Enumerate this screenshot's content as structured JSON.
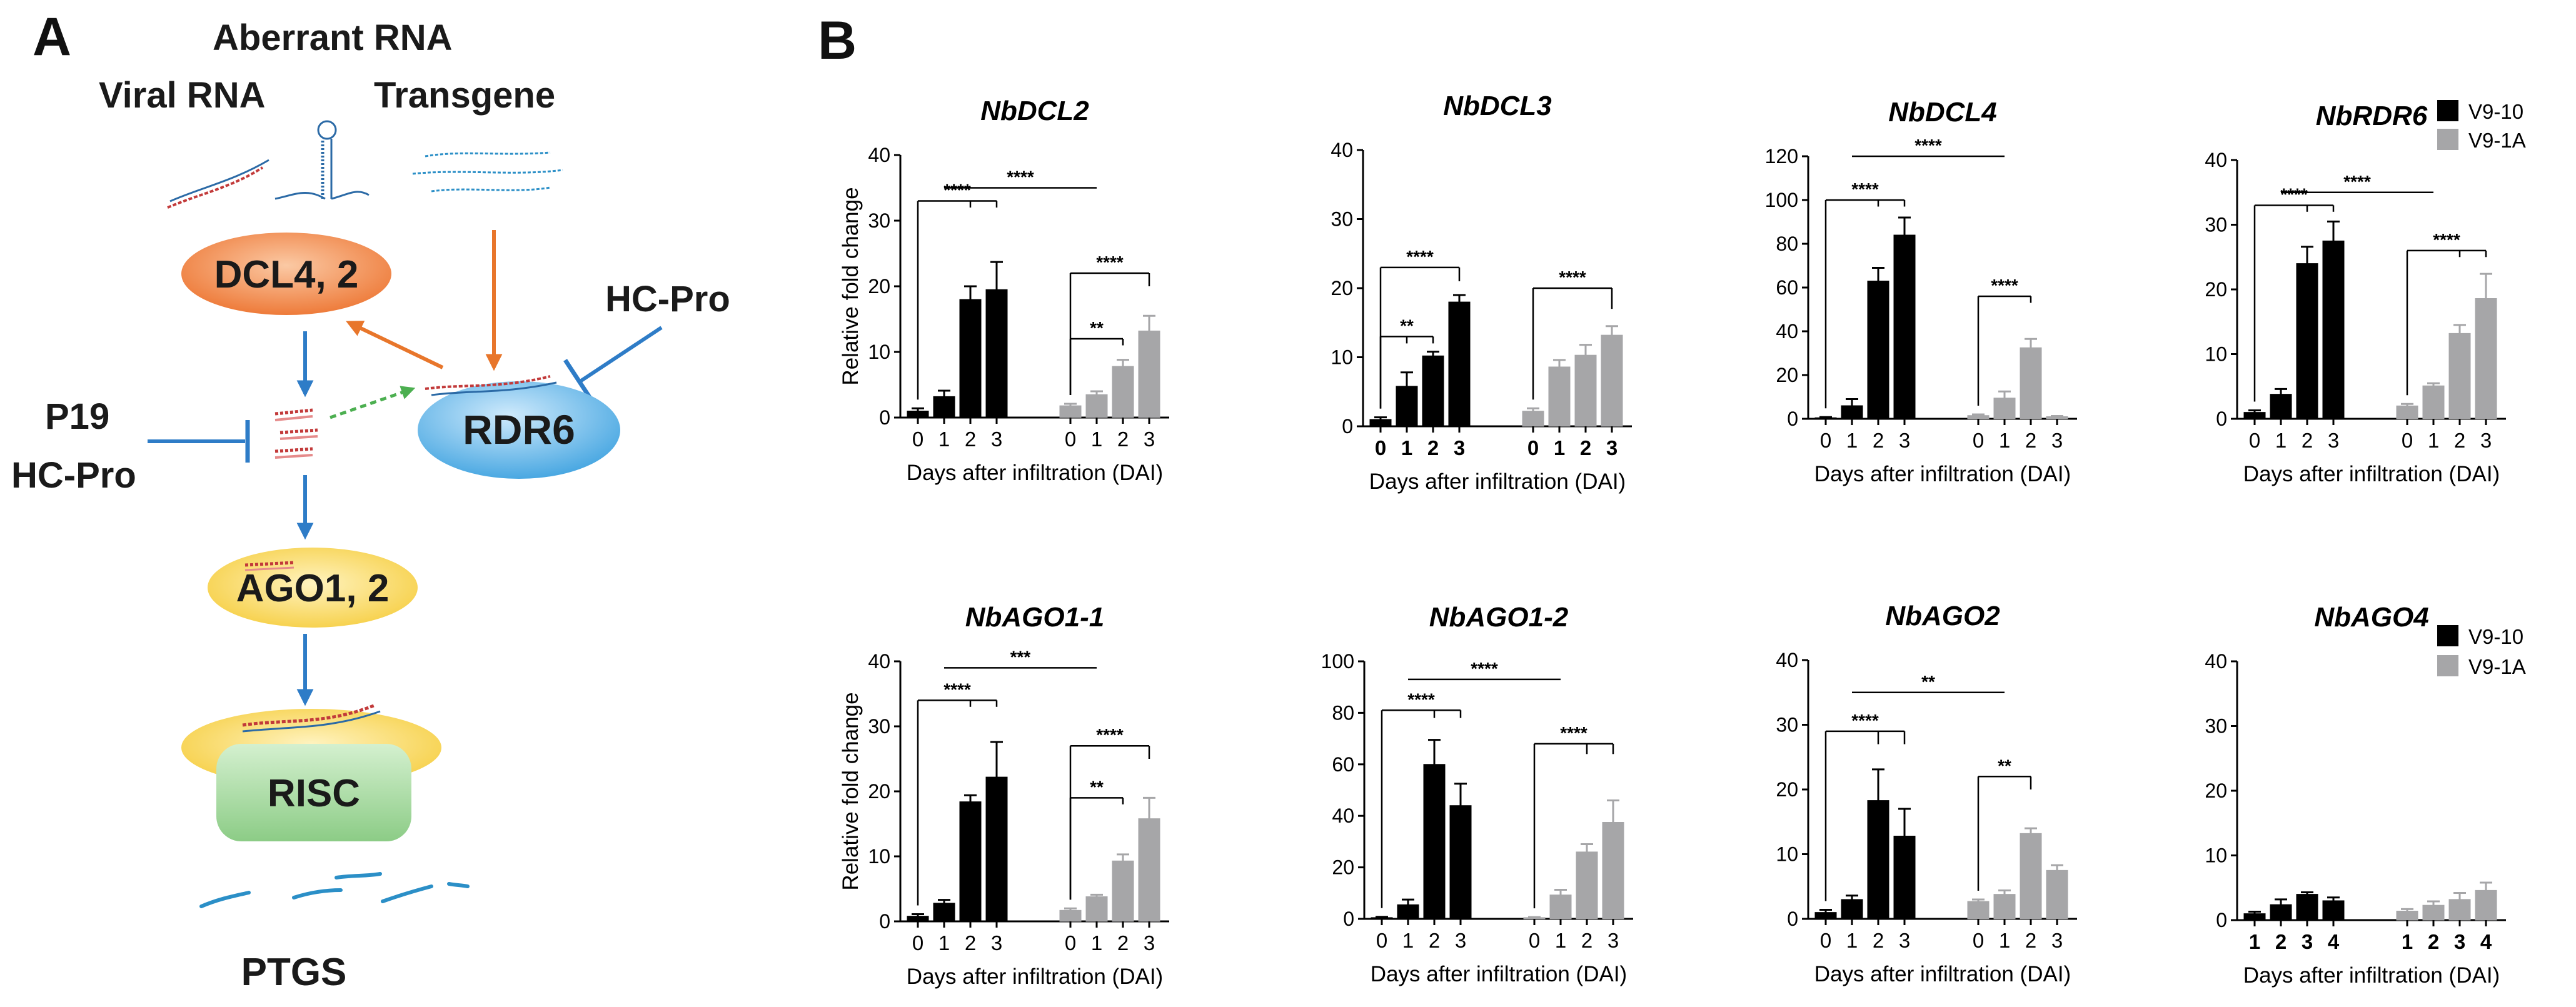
{
  "panels": {
    "a": "A",
    "b": "B"
  },
  "diagram": {
    "sources": {
      "aberrant": "Aberrant RNA",
      "viral": "Viral RNA",
      "transgene": "Transgene"
    },
    "nodes": {
      "dcl": "DCL4, 2",
      "rdr6": "RDR6",
      "ago": "AGO1, 2",
      "risc": "RISC",
      "ptgs": "PTGS"
    },
    "suppressors": {
      "hcpro_right": "HC-Pro",
      "p19": "P19",
      "hcpro_left": "HC-Pro"
    },
    "colors": {
      "dcl_fill": "#f08a4b",
      "rdr6_fill": "#5fb3e6",
      "ago_fill": "#f7d55a",
      "risc_fill": "#9ed59a",
      "arrow_blue": "#2e7cc7",
      "arrow_orange": "#e8762b",
      "arrow_green": "#4caf50"
    }
  },
  "legend": {
    "series1": "V9-10",
    "series2": "V9-1A",
    "color1": "#000000",
    "color2": "#a6a6a8"
  },
  "chart_data": [
    {
      "type": "bar",
      "title": "NbDCL2",
      "ylabel": "Relative fold change",
      "xlabel": "Days after infiltration (DAI)",
      "ylim": [
        0,
        40
      ],
      "yticks": [
        0,
        10,
        20,
        30,
        40
      ],
      "categories": [
        "0",
        "1",
        "2",
        "3"
      ],
      "series": [
        {
          "name": "V9-10",
          "values": [
            1.0,
            3.2,
            18,
            19.5
          ],
          "errors": [
            0.4,
            0.9,
            2.0,
            4.2
          ]
        },
        {
          "name": "V9-1A",
          "values": [
            1.8,
            3.5,
            7.8,
            13.2
          ],
          "errors": [
            0.3,
            0.5,
            1.0,
            2.3
          ]
        }
      ],
      "significance": [
        {
          "label": "****",
          "type": "within",
          "series": 0,
          "from": 0,
          "to": 2,
          "y": 33,
          "to_end": 3,
          "head": 32
        },
        {
          "label": "****",
          "type": "cross",
          "from": 1,
          "to": 5,
          "y": 35
        },
        {
          "label": "**",
          "type": "within",
          "series": 1,
          "from": 0,
          "to": 2,
          "y": 12,
          "head": 11
        },
        {
          "label": "****",
          "type": "within",
          "series": 1,
          "from": 0,
          "to": 3,
          "y": 22,
          "head": 20
        }
      ],
      "bold_x": false
    },
    {
      "type": "bar",
      "title": "NbDCL3",
      "ylabel": "",
      "xlabel": "Days after infiltration (DAI)",
      "ylim": [
        0,
        40
      ],
      "yticks": [
        0,
        10,
        20,
        30,
        40
      ],
      "categories": [
        "0",
        "1",
        "2",
        "3"
      ],
      "series": [
        {
          "name": "V9-10",
          "values": [
            1.0,
            5.8,
            10.2,
            18
          ],
          "errors": [
            0.3,
            2.0,
            0.6,
            1.0
          ]
        },
        {
          "name": "V9-1A",
          "values": [
            2.2,
            8.6,
            10.3,
            13.2
          ],
          "errors": [
            0.4,
            1.0,
            1.5,
            1.3
          ]
        }
      ],
      "significance": [
        {
          "label": "**",
          "type": "within",
          "series": 0,
          "from": 0,
          "to": 1,
          "y": 13,
          "head": 12,
          "to_end": 2
        },
        {
          "label": "****",
          "type": "within",
          "series": 0,
          "from": 0,
          "to": 3,
          "y": 23,
          "head": 21
        },
        {
          "label": "****",
          "type": "within",
          "series": 1,
          "from": 0,
          "to": 3,
          "y": 20,
          "head": 17
        }
      ],
      "bold_x": true
    },
    {
      "type": "bar",
      "title": "NbDCL4",
      "ylabel": "",
      "xlabel": "Days after infiltration (DAI)",
      "ylim": [
        0,
        120
      ],
      "yticks": [
        0,
        20,
        40,
        60,
        80,
        100,
        120
      ],
      "categories": [
        "0",
        "1",
        "2",
        "3"
      ],
      "series": [
        {
          "name": "V9-10",
          "values": [
            0.5,
            6,
            63,
            84
          ],
          "errors": [
            0.3,
            3,
            6,
            8
          ]
        },
        {
          "name": "V9-1A",
          "values": [
            1.5,
            9.5,
            32.5,
            1.0
          ],
          "errors": [
            0.5,
            3,
            4,
            0.3
          ]
        }
      ],
      "significance": [
        {
          "label": "****",
          "type": "within",
          "series": 0,
          "from": 0,
          "to": 2,
          "y": 100,
          "head": 97,
          "to_end": 3
        },
        {
          "label": "****",
          "type": "cross",
          "from": 1,
          "to": 5,
          "y": 120
        },
        {
          "label": "****",
          "type": "within",
          "series": 1,
          "from": 0,
          "to": 2,
          "y": 56,
          "head": 53
        }
      ],
      "bold_x": false
    },
    {
      "type": "bar",
      "title": "NbRDR6",
      "ylabel": "",
      "xlabel": "Days after infiltration (DAI)",
      "ylim": [
        0,
        40
      ],
      "yticks": [
        0,
        10,
        20,
        30,
        40
      ],
      "categories": [
        "0",
        "1",
        "2",
        "3"
      ],
      "series": [
        {
          "name": "V9-10",
          "values": [
            1.0,
            3.8,
            24,
            27.5
          ],
          "errors": [
            0.3,
            0.8,
            2.6,
            3.0
          ]
        },
        {
          "name": "V9-1A",
          "values": [
            2.0,
            5.1,
            13.2,
            18.6
          ],
          "errors": [
            0.3,
            0.4,
            1.3,
            3.8
          ]
        }
      ],
      "significance": [
        {
          "label": "****",
          "type": "within",
          "series": 0,
          "from": 0,
          "to": 2,
          "y": 33,
          "head": 32,
          "to_end": 3
        },
        {
          "label": "****",
          "type": "cross",
          "from": 1,
          "to": 5,
          "y": 35
        },
        {
          "label": "****",
          "type": "within",
          "series": 1,
          "from": 0,
          "to": 2,
          "y": 26,
          "head": 25,
          "to_end": 3
        }
      ],
      "bold_x": false
    },
    {
      "type": "bar",
      "title": "NbAGO1-1",
      "ylabel": "Relative fold change",
      "xlabel": "Days after infiltration (DAI)",
      "ylim": [
        0,
        40
      ],
      "yticks": [
        0,
        10,
        20,
        30,
        40
      ],
      "categories": [
        "0",
        "1",
        "2",
        "3"
      ],
      "series": [
        {
          "name": "V9-10",
          "values": [
            0.8,
            2.8,
            18.4,
            22.2
          ],
          "errors": [
            0.3,
            0.5,
            1.0,
            5.4
          ]
        },
        {
          "name": "V9-1A",
          "values": [
            1.7,
            3.8,
            9.3,
            15.8
          ],
          "errors": [
            0.3,
            0.3,
            1.0,
            3.2
          ]
        }
      ],
      "significance": [
        {
          "label": "****",
          "type": "within",
          "series": 0,
          "from": 0,
          "to": 2,
          "y": 34,
          "head": 33,
          "to_end": 3
        },
        {
          "label": "***",
          "type": "cross",
          "from": 1,
          "to": 5,
          "y": 39
        },
        {
          "label": "**",
          "type": "within",
          "series": 1,
          "from": 0,
          "to": 2,
          "y": 19,
          "head": 18
        },
        {
          "label": "****",
          "type": "within",
          "series": 1,
          "from": 0,
          "to": 3,
          "y": 27,
          "head": 25
        }
      ],
      "bold_x": false
    },
    {
      "type": "bar",
      "title": "NbAGO1-2",
      "ylabel": "",
      "xlabel": "Days after infiltration (DAI)",
      "ylim": [
        0,
        100
      ],
      "yticks": [
        0,
        20,
        40,
        60,
        80,
        100
      ],
      "categories": [
        "0",
        "1",
        "2",
        "3"
      ],
      "series": [
        {
          "name": "V9-10",
          "values": [
            0.5,
            5.5,
            60,
            44
          ],
          "errors": [
            0.3,
            2.0,
            9.5,
            8.5
          ]
        },
        {
          "name": "V9-1A",
          "values": [
            0.5,
            9.3,
            26,
            37.5
          ],
          "errors": [
            0.2,
            2.0,
            3.0,
            8.5
          ]
        }
      ],
      "significance": [
        {
          "label": "****",
          "type": "within",
          "series": 0,
          "from": 0,
          "to": 2,
          "y": 81,
          "head": 78,
          "to_end": 3
        },
        {
          "label": "****",
          "type": "cross",
          "from": 1,
          "to": 5,
          "y": 93
        },
        {
          "label": "****",
          "type": "within",
          "series": 1,
          "from": 0,
          "to": 2,
          "y": 68,
          "head": 64,
          "to_end": 3
        }
      ],
      "bold_x": false
    },
    {
      "type": "bar",
      "title": "NbAGO2",
      "ylabel": "",
      "xlabel": "Days after infiltration (DAI)",
      "ylim": [
        0,
        40
      ],
      "yticks": [
        0,
        10,
        20,
        30,
        40
      ],
      "categories": [
        "0",
        "1",
        "2",
        "3"
      ],
      "series": [
        {
          "name": "V9-10",
          "values": [
            1.0,
            3.0,
            18.3,
            12.8
          ],
          "errors": [
            0.4,
            0.6,
            4.8,
            4.2
          ]
        },
        {
          "name": "V9-1A",
          "values": [
            2.7,
            3.8,
            13.2,
            7.5
          ],
          "errors": [
            0.3,
            0.6,
            0.8,
            0.8
          ]
        }
      ],
      "significance": [
        {
          "label": "****",
          "type": "within",
          "series": 0,
          "from": 0,
          "to": 2,
          "y": 29,
          "head": 27,
          "to_end": 3
        },
        {
          "label": "**",
          "type": "cross",
          "from": 1,
          "to": 5,
          "y": 35
        },
        {
          "label": "**",
          "type": "within",
          "series": 1,
          "from": 0,
          "to": 2,
          "y": 22,
          "head": 20
        }
      ],
      "bold_x": false
    },
    {
      "type": "bar",
      "title": "NbAGO4",
      "ylabel": "",
      "xlabel": "Days after infiltration (DAI)",
      "ylim": [
        0,
        40
      ],
      "yticks": [
        0,
        10,
        20,
        30,
        40
      ],
      "categories": [
        "1",
        "2",
        "3",
        "4"
      ],
      "series": [
        {
          "name": "V9-10",
          "values": [
            1.0,
            2.4,
            4.0,
            3.0
          ],
          "errors": [
            0.3,
            0.8,
            0.3,
            0.5
          ]
        },
        {
          "name": "V9-1A",
          "values": [
            1.4,
            2.3,
            3.2,
            4.6
          ],
          "errors": [
            0.3,
            0.6,
            1.0,
            1.2
          ]
        }
      ],
      "significance": [],
      "bold_x": true
    }
  ]
}
